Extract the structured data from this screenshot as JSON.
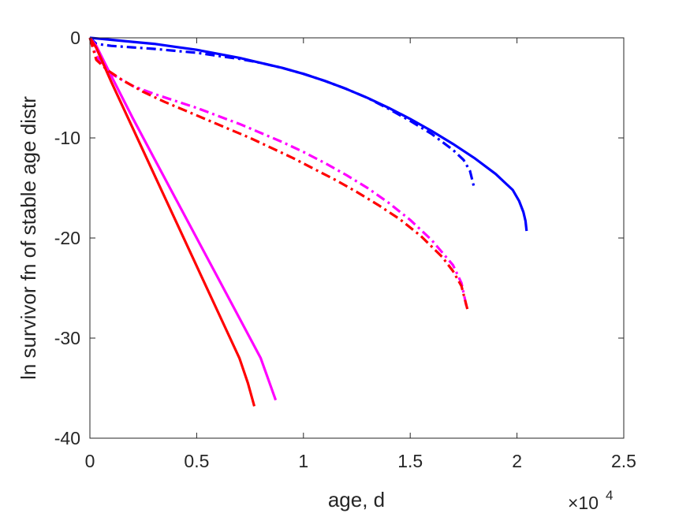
{
  "chart_data": {
    "type": "line",
    "xlabel": "age, d",
    "ylabel": "ln survivor fn of stable age distr",
    "xlim": [
      0,
      25000
    ],
    "ylim": [
      -40,
      0
    ],
    "x_ticks": [
      0,
      5000,
      10000,
      15000,
      20000,
      25000
    ],
    "x_tick_labels": [
      "0",
      "0.5",
      "1",
      "1.5",
      "2",
      "2.5"
    ],
    "x_exponent_label": "×10",
    "x_exponent_power": "4",
    "y_ticks": [
      -40,
      -30,
      -20,
      -10,
      0
    ],
    "y_tick_labels": [
      "-40",
      "-30",
      "-20",
      "-10",
      "0"
    ],
    "grid": false,
    "box": true,
    "series": [
      {
        "color": "#0000ff",
        "style": "solid",
        "x": [
          0,
          1000,
          2000,
          3000,
          4000,
          5000,
          6000,
          7000,
          8000,
          9000,
          10000,
          11000,
          12000,
          13000,
          14000,
          15000,
          16000,
          17000,
          18000,
          19000,
          19800,
          20100,
          20300,
          20400,
          20450
        ],
        "y": [
          0,
          -0.2,
          -0.4,
          -0.6,
          -0.9,
          -1.2,
          -1.6,
          -2.0,
          -2.5,
          -3.0,
          -3.6,
          -4.3,
          -5.1,
          -6.0,
          -7.0,
          -8.1,
          -9.3,
          -10.6,
          -12.0,
          -13.6,
          -15.2,
          -16.3,
          -17.4,
          -18.3,
          -19.3
        ]
      },
      {
        "color": "#0000ff",
        "style": "dashdot",
        "x": [
          0,
          300,
          1000,
          2000,
          3000,
          4000,
          5000,
          6000,
          7000,
          8000,
          9000,
          10000,
          11000,
          12000,
          13000,
          14000,
          15000,
          16000,
          17000,
          17500,
          17800,
          18000
        ],
        "y": [
          0,
          -0.6,
          -0.8,
          -0.95,
          -1.1,
          -1.3,
          -1.5,
          -1.8,
          -2.1,
          -2.5,
          -3.0,
          -3.6,
          -4.3,
          -5.1,
          -6.0,
          -7.1,
          -8.3,
          -9.6,
          -11.2,
          -12.2,
          -13.3,
          -15.0
        ]
      },
      {
        "color": "#ff00ff",
        "style": "solid",
        "x": [
          0,
          300,
          1000,
          2000,
          3000,
          4000,
          5000,
          6000,
          7000,
          8000,
          8300,
          8500,
          8700
        ],
        "y": [
          0,
          -0.8,
          -3.8,
          -8.0,
          -12.0,
          -16.0,
          -20.0,
          -24.0,
          -28.0,
          -32.0,
          -33.8,
          -35.0,
          -36.2
        ]
      },
      {
        "color": "#ff00ff",
        "style": "dashdot",
        "x": [
          0,
          300,
          1000,
          2000,
          3000,
          4000,
          5000,
          6000,
          7000,
          8000,
          9000,
          10000,
          11000,
          12000,
          13000,
          14000,
          15000,
          16000,
          17000,
          17400,
          17650
        ],
        "y": [
          0,
          -1.8,
          -3.6,
          -4.8,
          -5.6,
          -6.3,
          -7.0,
          -7.8,
          -8.6,
          -9.5,
          -10.4,
          -11.4,
          -12.5,
          -13.7,
          -15.0,
          -16.5,
          -18.2,
          -20.2,
          -22.7,
          -24.5,
          -27.0
        ]
      },
      {
        "color": "#ff0000",
        "style": "solid",
        "x": [
          0,
          300,
          1000,
          2000,
          3000,
          4000,
          5000,
          6000,
          7000,
          7400,
          7700
        ],
        "y": [
          0,
          -1.0,
          -4.4,
          -9.0,
          -13.6,
          -18.2,
          -22.8,
          -27.4,
          -32.0,
          -34.5,
          -36.8
        ]
      },
      {
        "color": "#ff0000",
        "style": "dashdot",
        "x": [
          0,
          300,
          800,
          1500,
          2500,
          3500,
          4500,
          5500,
          6500,
          7500,
          8500,
          9500,
          10500,
          11500,
          12500,
          13500,
          14500,
          15500,
          16500,
          17000,
          17400,
          17700
        ],
        "y": [
          0,
          -2.2,
          -3.2,
          -4.2,
          -5.4,
          -6.4,
          -7.3,
          -8.2,
          -9.1,
          -10.0,
          -11.0,
          -12.0,
          -13.1,
          -14.2,
          -15.4,
          -16.7,
          -18.1,
          -19.8,
          -21.9,
          -23.3,
          -24.8,
          -27.3
        ]
      }
    ]
  }
}
